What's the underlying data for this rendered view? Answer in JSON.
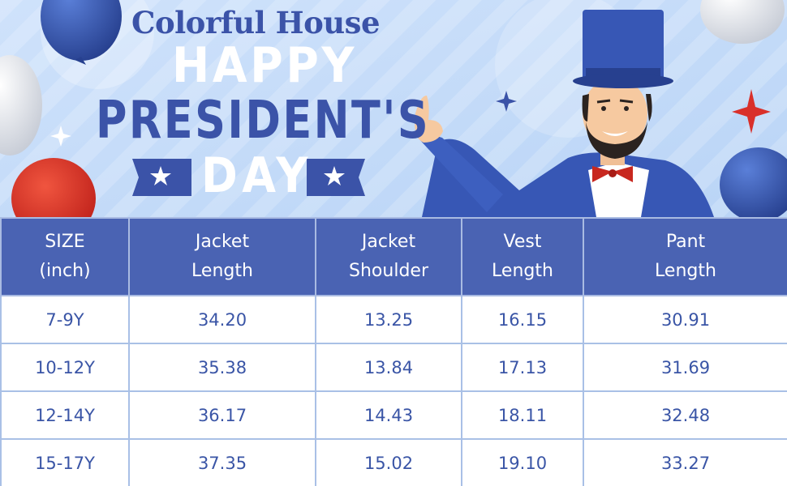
{
  "banner": {
    "brand": "Colorful House",
    "line1": "HAPPY",
    "line2": "PRESIDENT'S",
    "line3": "DAY"
  },
  "table": {
    "headers": [
      {
        "line1": "SIZE",
        "line2": "(inch)"
      },
      {
        "line1": "Jacket",
        "line2": "Length"
      },
      {
        "line1": "Jacket",
        "line2": "Shoulder"
      },
      {
        "line1": "Vest",
        "line2": "Length"
      },
      {
        "line1": "Pant",
        "line2": "Length"
      }
    ],
    "rows": [
      [
        "7-9Y",
        "34.20",
        "13.25",
        "16.15",
        "30.91"
      ],
      [
        "10-12Y",
        "35.38",
        "13.84",
        "17.13",
        "31.69"
      ],
      [
        "12-14Y",
        "36.17",
        "14.43",
        "18.11",
        "32.48"
      ],
      [
        "15-17Y",
        "37.35",
        "15.02",
        "19.10",
        "33.27"
      ]
    ]
  },
  "colors": {
    "header_bg": "#4a63b3",
    "text_blue": "#3a55a6",
    "border": "#a9c0e6"
  }
}
